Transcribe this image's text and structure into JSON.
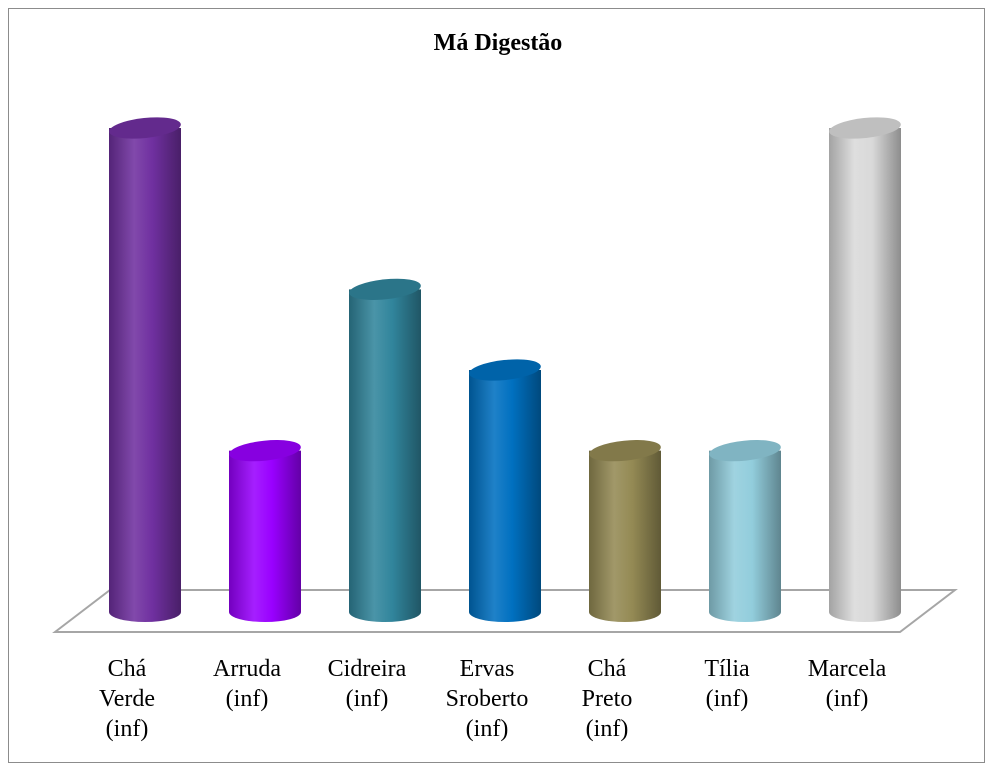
{
  "chart_data": {
    "type": "bar",
    "title": "Má Digestão",
    "categories": [
      [
        "Chá",
        "Verde",
        "(inf)"
      ],
      [
        "Arruda",
        "(inf)"
      ],
      [
        "Cidreira",
        "(inf)"
      ],
      [
        "Ervas",
        "Sroberto",
        "(inf)"
      ],
      [
        "Chá",
        "Preto",
        "(inf)"
      ],
      [
        "Tília",
        "(inf)"
      ],
      [
        "Marcela",
        "(inf)"
      ]
    ],
    "values": [
      6,
      2,
      4,
      3,
      2,
      2,
      6
    ],
    "ylim": [
      0,
      6
    ],
    "grid": false,
    "legend": "none",
    "colors": [
      "#7030a0",
      "#9900ff",
      "#31859c",
      "#0070c0",
      "#948a54",
      "#92cddc",
      "#d9d9d9"
    ]
  }
}
